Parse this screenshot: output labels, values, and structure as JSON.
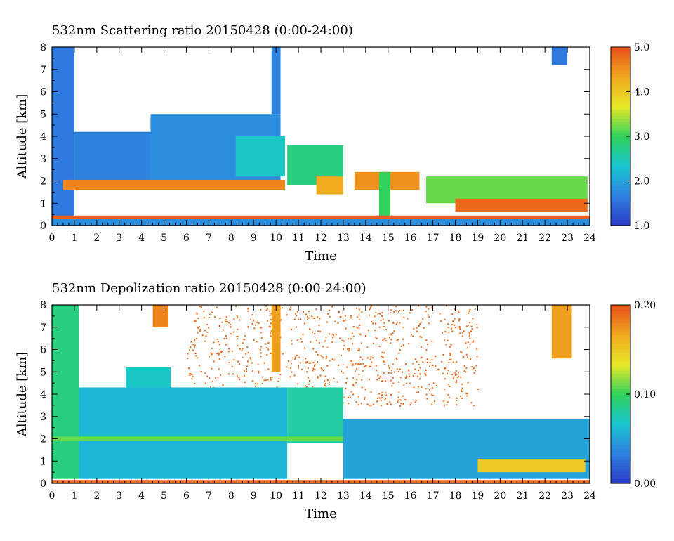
{
  "chart_data": [
    {
      "type": "heatmap",
      "title": "532nm Scattering ratio  20150428 (0:00-24:00)",
      "xlabel": "Time",
      "ylabel": "Altitude [km]",
      "xlim": [
        0,
        24
      ],
      "ylim": [
        0,
        8
      ],
      "x_ticks": [
        "0",
        "1",
        "2",
        "3",
        "4",
        "5",
        "6",
        "7",
        "8",
        "9",
        "10",
        "11",
        "12",
        "13",
        "14",
        "15",
        "16",
        "17",
        "18",
        "19",
        "20",
        "21",
        "22",
        "23",
        "24"
      ],
      "y_ticks": [
        "0",
        "1",
        "2",
        "3",
        "4",
        "5",
        "6",
        "7",
        "8"
      ],
      "colorbar": {
        "min": 1.0,
        "max": 5.0,
        "tick_labels": [
          "1.0",
          "2.0",
          "3.0",
          "4.0",
          "5.0"
        ]
      },
      "colormap": [
        "#2a39c4",
        "#2f7fe0",
        "#19c6d2",
        "#2fd25a",
        "#e8e82a",
        "#f0a81e",
        "#e8501a"
      ],
      "regions": [
        {
          "t": [
            0.0,
            1.0
          ],
          "z": [
            0.3,
            8.0
          ],
          "value": 1.6
        },
        {
          "t": [
            1.0,
            4.4
          ],
          "z": [
            2.0,
            4.2
          ],
          "value": 1.7
        },
        {
          "t": [
            4.4,
            10.2
          ],
          "z": [
            2.0,
            5.0
          ],
          "value": 1.8
        },
        {
          "t": [
            8.2,
            10.4
          ],
          "z": [
            2.2,
            4.0
          ],
          "value": 2.4
        },
        {
          "t": [
            0.5,
            10.4
          ],
          "z": [
            1.6,
            2.05
          ],
          "value": 4.6
        },
        {
          "t": [
            10.5,
            13.0
          ],
          "z": [
            1.8,
            3.6
          ],
          "value": 2.8
        },
        {
          "t": [
            11.8,
            13.0
          ],
          "z": [
            1.4,
            2.2
          ],
          "value": 4.3
        },
        {
          "t": [
            13.5,
            16.4
          ],
          "z": [
            1.6,
            2.4
          ],
          "value": 4.5
        },
        {
          "t": [
            14.6,
            15.1
          ],
          "z": [
            0.2,
            2.4
          ],
          "value": 3.0
        },
        {
          "t": [
            16.7,
            23.9
          ],
          "z": [
            1.0,
            2.2
          ],
          "value": 3.2
        },
        {
          "t": [
            18.0,
            23.9
          ],
          "z": [
            0.6,
            1.2
          ],
          "value": 4.8
        },
        {
          "t": [
            0.0,
            24.0
          ],
          "z": [
            0.3,
            0.45
          ],
          "value": 4.9
        },
        {
          "t": [
            0.0,
            24.0
          ],
          "z": [
            0.0,
            0.3
          ],
          "value": 1.8
        },
        {
          "t": [
            22.3,
            23.0
          ],
          "z": [
            7.2,
            8.0
          ],
          "value": 1.6
        },
        {
          "t": [
            9.8,
            10.2
          ],
          "z": [
            5.0,
            8.0
          ],
          "value": 1.7
        }
      ]
    },
    {
      "type": "heatmap",
      "title": "532nm Depolization ratio  20150428 (0:00-24:00)",
      "xlabel": "Time",
      "ylabel": "Altitude [km]",
      "xlim": [
        0,
        24
      ],
      "ylim": [
        0,
        8
      ],
      "x_ticks": [
        "0",
        "1",
        "2",
        "3",
        "4",
        "5",
        "6",
        "7",
        "8",
        "9",
        "10",
        "11",
        "12",
        "13",
        "14",
        "15",
        "16",
        "17",
        "18",
        "19",
        "20",
        "21",
        "22",
        "23",
        "24"
      ],
      "y_ticks": [
        "0",
        "1",
        "2",
        "3",
        "4",
        "5",
        "6",
        "7",
        "8"
      ],
      "colorbar": {
        "min": 0.0,
        "max": 0.2,
        "tick_labels": [
          "0.00",
          "0.10",
          "0.20"
        ]
      },
      "colormap": [
        "#2a39c4",
        "#2f7fe0",
        "#19c6d2",
        "#2fd25a",
        "#e8e82a",
        "#f0a81e",
        "#e8501a"
      ],
      "regions": [
        {
          "t": [
            0.0,
            1.2
          ],
          "z": [
            0.2,
            8.0
          ],
          "value": 0.09
        },
        {
          "t": [
            1.2,
            10.5
          ],
          "z": [
            0.2,
            4.3
          ],
          "value": 0.06
        },
        {
          "t": [
            3.3,
            5.3
          ],
          "z": [
            4.3,
            5.2
          ],
          "value": 0.07
        },
        {
          "t": [
            4.5,
            5.2
          ],
          "z": [
            7.0,
            8.0
          ],
          "value": 0.18
        },
        {
          "t": [
            10.5,
            13.0
          ],
          "z": [
            1.8,
            4.3
          ],
          "value": 0.08
        },
        {
          "t": [
            13.0,
            24.0
          ],
          "z": [
            0.2,
            2.9
          ],
          "value": 0.05
        },
        {
          "t": [
            0.0,
            13.0
          ],
          "z": [
            1.9,
            2.1
          ],
          "value": 0.11
        },
        {
          "t": [
            19.0,
            23.8
          ],
          "z": [
            0.5,
            1.1
          ],
          "value": 0.15
        },
        {
          "t": [
            22.3,
            23.2
          ],
          "z": [
            5.6,
            8.0
          ],
          "value": 0.17
        },
        {
          "t": [
            9.8,
            10.2
          ],
          "z": [
            5.0,
            8.0
          ],
          "value": 0.17
        },
        {
          "t": [
            0.0,
            24.0
          ],
          "z": [
            0.0,
            0.15
          ],
          "value": 0.19
        }
      ],
      "speckle": {
        "t": [
          6.0,
          19.0
        ],
        "z": [
          3.5,
          8.0
        ],
        "value": 0.19
      }
    }
  ]
}
